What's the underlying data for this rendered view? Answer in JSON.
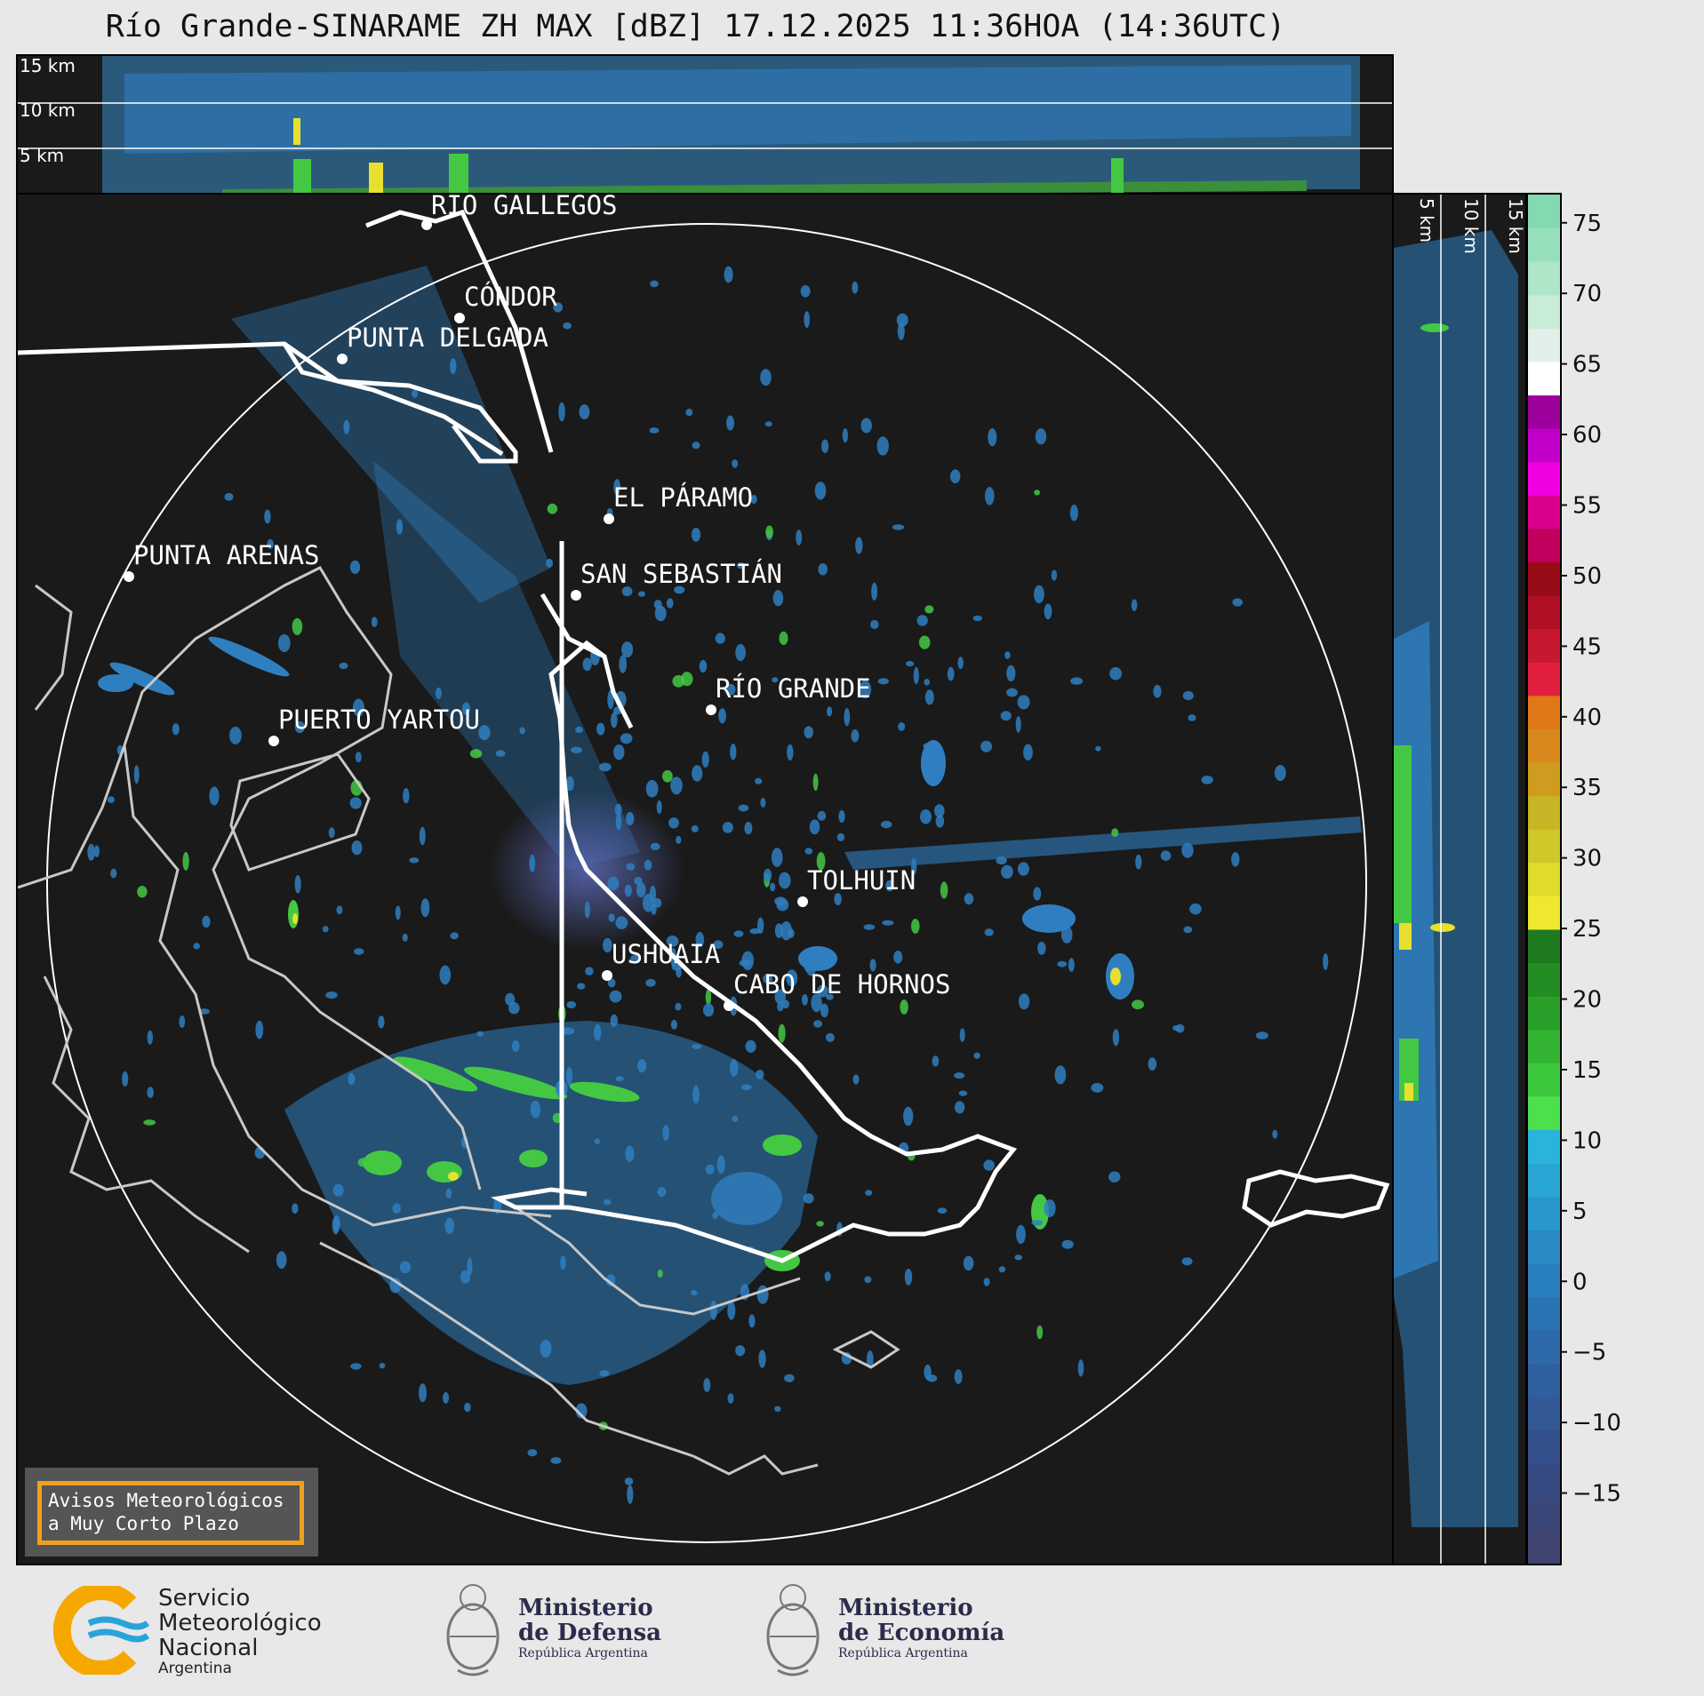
{
  "title": "Río Grande-SINARAME ZH MAX [dBZ] 17.12.2025 11:36HOA (14:36UTC)",
  "height_labels": [
    "15 km",
    "10 km",
    "5 km"
  ],
  "cities": [
    {
      "name": "RÍO GALLEGOS"
    },
    {
      "name": "CÓNDOR"
    },
    {
      "name": "PUNTA DELGADA"
    },
    {
      "name": "PUNTA ARENAS"
    },
    {
      "name": "EL PÁRAMO"
    },
    {
      "name": "SAN SEBASTIÁN"
    },
    {
      "name": "RÍO GRANDE"
    },
    {
      "name": "PUERTO YARTOU"
    },
    {
      "name": "TOLHUIN"
    },
    {
      "name": "USHUAIA"
    },
    {
      "name": "CABO DE HORNOS"
    }
  ],
  "colorbar": {
    "ticks": [
      "75",
      "70",
      "65",
      "60",
      "55",
      "50",
      "45",
      "40",
      "35",
      "30",
      "25",
      "20",
      "15",
      "10",
      "5",
      "0",
      "−5",
      "−10",
      "−15"
    ],
    "range": [
      -20,
      77
    ]
  },
  "notice": {
    "line1": "Avisos Meteorológicos",
    "line2": "a Muy Corto Plazo",
    "border_color": "#f0a020"
  },
  "logos": {
    "smn": {
      "line1": "Servicio",
      "line2": "Meteorológico",
      "line3": "Nacional",
      "line4": "Argentina"
    },
    "defensa": {
      "line1": "Ministerio",
      "line2": "de Defensa",
      "line3": "República Argentina"
    },
    "economia": {
      "line1": "Ministerio",
      "line2": "de Economía",
      "line3": "República Argentina"
    }
  },
  "colors": {
    "panel_bg": "#1a1a1a",
    "echo_weak": "#2f7fc0",
    "echo_mid": "#44c844",
    "echo_strong": "#e8e030"
  }
}
